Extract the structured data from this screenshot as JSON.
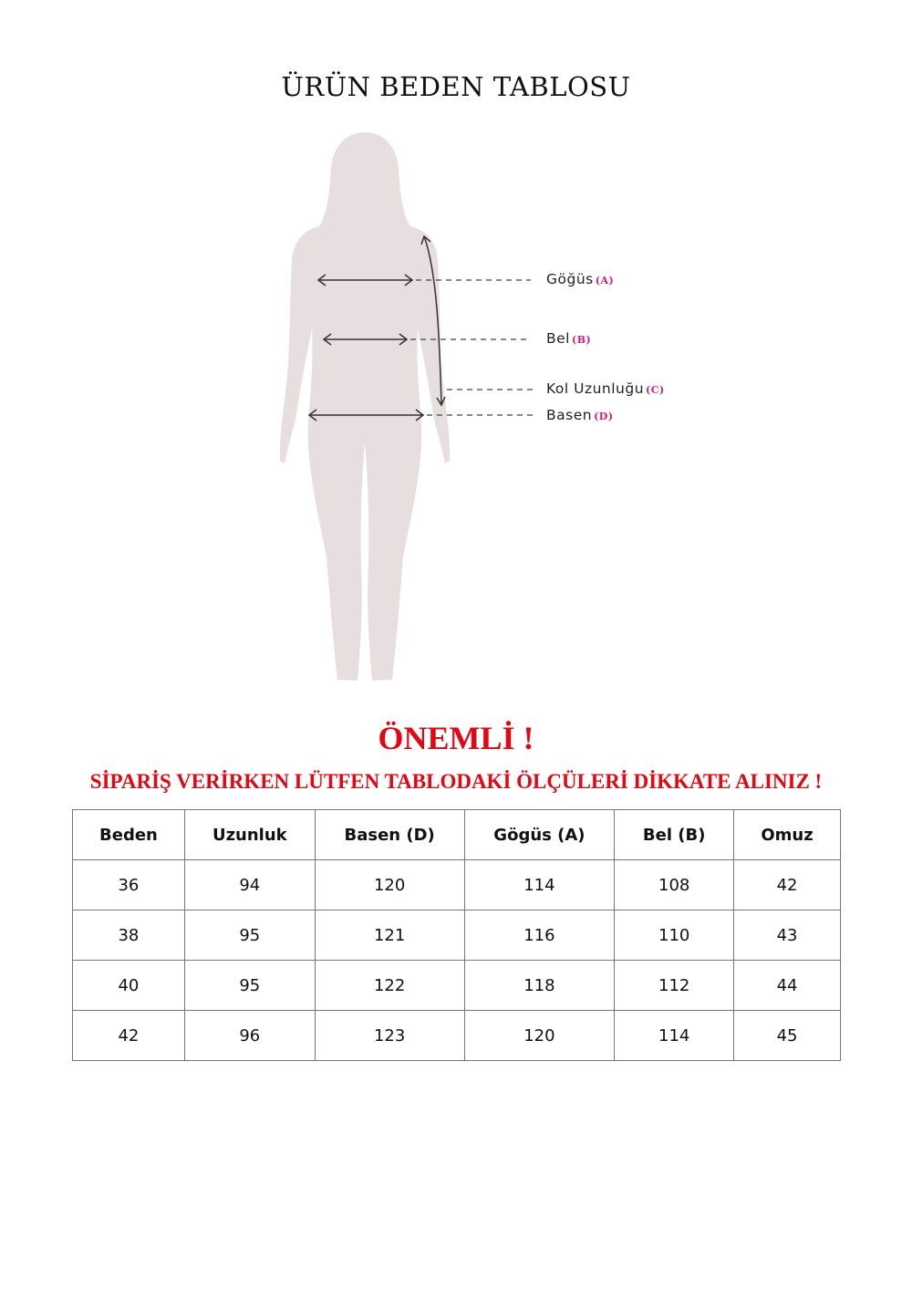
{
  "title": "ÜRÜN BEDEN TABLOSU",
  "figure": {
    "labels": [
      {
        "name": "Göğüs",
        "key": "(A)"
      },
      {
        "name": "Bel",
        "key": "(B)"
      },
      {
        "name": "Kol Uzunluğu",
        "key": "(C)"
      },
      {
        "name": "Basen",
        "key": "(D)"
      }
    ],
    "silhouette_color": "#e7dedf",
    "key_color": "#d81b7a"
  },
  "notice": {
    "heading": "ÖNEMLİ !",
    "text": "SİPARİŞ VERİRKEN LÜTFEN TABLODAKİ ÖLÇÜLERİ DİKKATE ALINIZ !",
    "color": "#e30613"
  },
  "table": {
    "headers": [
      "Beden",
      "Uzunluk",
      "Basen (D)",
      "Gögüs (A)",
      "Bel (B)",
      "Omuz"
    ],
    "rows": [
      [
        "36",
        "94",
        "120",
        "114",
        "108",
        "42"
      ],
      [
        "38",
        "95",
        "121",
        "116",
        "110",
        "43"
      ],
      [
        "40",
        "95",
        "122",
        "118",
        "112",
        "44"
      ],
      [
        "42",
        "96",
        "123",
        "120",
        "114",
        "45"
      ]
    ]
  }
}
